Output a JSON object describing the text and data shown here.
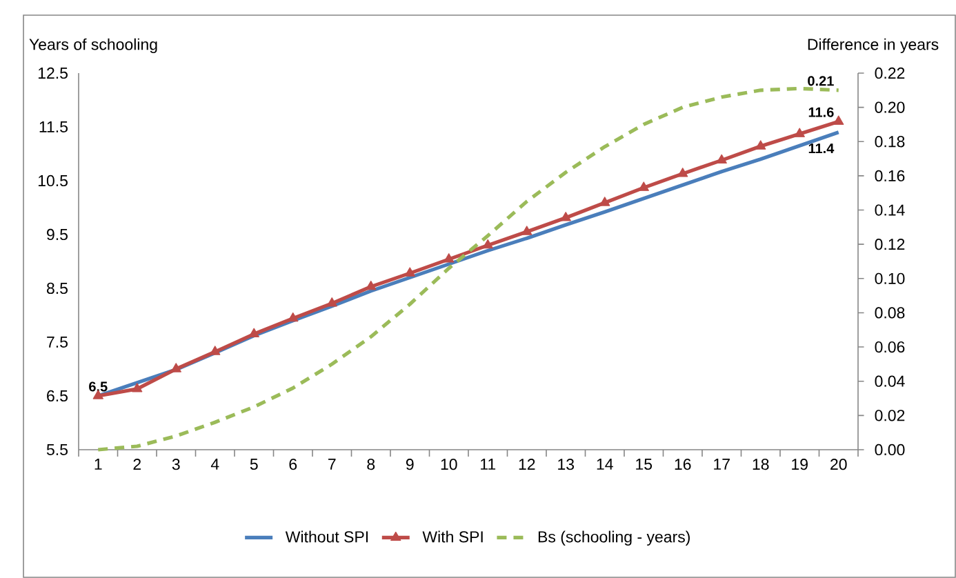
{
  "chart_data": {
    "type": "line",
    "ylabel": "Years of schooling",
    "y2label": "Difference in years",
    "categories": [
      "1",
      "2",
      "3",
      "4",
      "5",
      "6",
      "7",
      "8",
      "9",
      "10",
      "11",
      "12",
      "13",
      "14",
      "15",
      "16",
      "17",
      "18",
      "19",
      "20"
    ],
    "ylim": [
      5.5,
      12.5
    ],
    "yticks": [
      5.5,
      6.5,
      7.5,
      8.5,
      9.5,
      10.5,
      11.5,
      12.5
    ],
    "y2lim": [
      0,
      0.22
    ],
    "y2ticks": [
      {
        "value": 0,
        "label": "0.00"
      },
      {
        "value": 0.02,
        "label": "0.02"
      },
      {
        "value": 0.04,
        "label": "0.04"
      },
      {
        "value": 0.06,
        "label": "0.06"
      },
      {
        "value": 0.08,
        "label": "0.08"
      },
      {
        "value": 0.1,
        "label": "0.10"
      },
      {
        "value": 0.12,
        "label": "0.12"
      },
      {
        "value": 0.14,
        "label": "0.14"
      },
      {
        "value": 0.16,
        "label": "0.16"
      },
      {
        "value": 0.18,
        "label": "0.18"
      },
      {
        "value": 0.2,
        "label": "0.20"
      },
      {
        "value": 0.22,
        "label": "0.22"
      }
    ],
    "legend": "bottom",
    "grid": false,
    "series": [
      {
        "name": "Without SPI",
        "color": "#4a7ebb",
        "marker": "none",
        "line_style": "solid",
        "values": [
          6.5,
          null,
          6.99,
          7.3,
          7.62,
          7.9,
          8.17,
          8.45,
          8.7,
          8.95,
          9.2,
          9.43,
          9.68,
          9.92,
          10.17,
          10.42,
          10.67,
          10.9,
          11.15,
          11.4
        ],
        "value_labels": [
          null,
          null,
          null,
          null,
          null,
          null,
          null,
          null,
          null,
          null,
          null,
          null,
          null,
          null,
          null,
          null,
          null,
          null,
          null,
          "11.4"
        ]
      },
      {
        "name": "With SPI",
        "color": "#be4b48",
        "marker": "triangle",
        "line_style": "solid",
        "values": [
          6.5,
          6.63,
          7.0,
          7.32,
          7.65,
          7.94,
          8.22,
          8.53,
          8.78,
          9.04,
          9.3,
          9.55,
          9.81,
          10.09,
          10.37,
          10.63,
          10.88,
          11.14,
          11.37,
          11.6
        ],
        "value_labels": [
          "6.5",
          null,
          null,
          null,
          null,
          null,
          null,
          null,
          null,
          null,
          null,
          null,
          null,
          null,
          null,
          null,
          null,
          null,
          null,
          "11.6"
        ]
      },
      {
        "name": "Bs (schooling - years)",
        "color": "#9bbb59",
        "marker": "none",
        "line_style": "dashed",
        "axis": "y2",
        "values": [
          0.0,
          0.002,
          0.008,
          0.016,
          0.025,
          0.036,
          0.05,
          0.066,
          0.085,
          0.106,
          0.125,
          0.145,
          0.162,
          0.177,
          0.19,
          0.2,
          0.206,
          0.21,
          0.211,
          0.21
        ],
        "value_labels": [
          null,
          null,
          null,
          null,
          null,
          null,
          null,
          null,
          null,
          null,
          null,
          null,
          null,
          null,
          null,
          null,
          null,
          null,
          null,
          "0.21"
        ]
      }
    ]
  }
}
